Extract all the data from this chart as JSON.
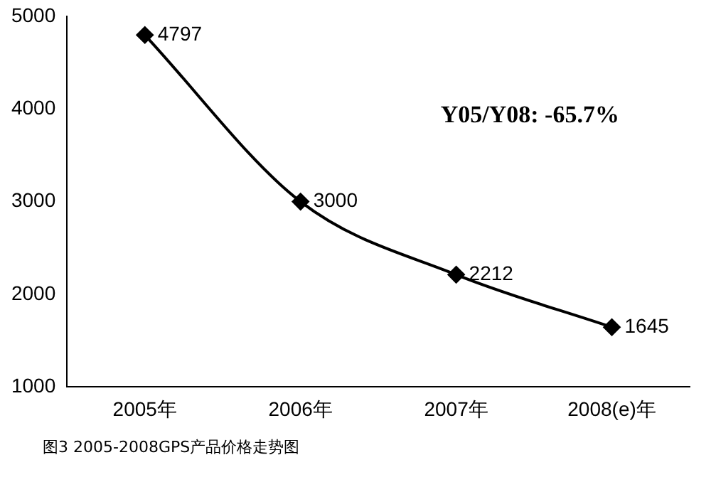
{
  "chart_data": {
    "type": "line",
    "title": "图3  2005-2008GPS产品价格走势图",
    "categories": [
      "2005年",
      "2006年",
      "2007年",
      "2008(e)年"
    ],
    "series": [
      {
        "color": "#000000",
        "values": [
          4797,
          3000,
          2212,
          1645
        ]
      }
    ],
    "ylim": [
      1000,
      5000
    ],
    "yticks": [
      1000,
      2000,
      3000,
      4000,
      5000
    ],
    "grid": false,
    "legend": false,
    "marker": "diamond",
    "line_style": "solid",
    "data_labels": true,
    "annotations": [
      "Y05/Y08: -65.7%"
    ]
  }
}
